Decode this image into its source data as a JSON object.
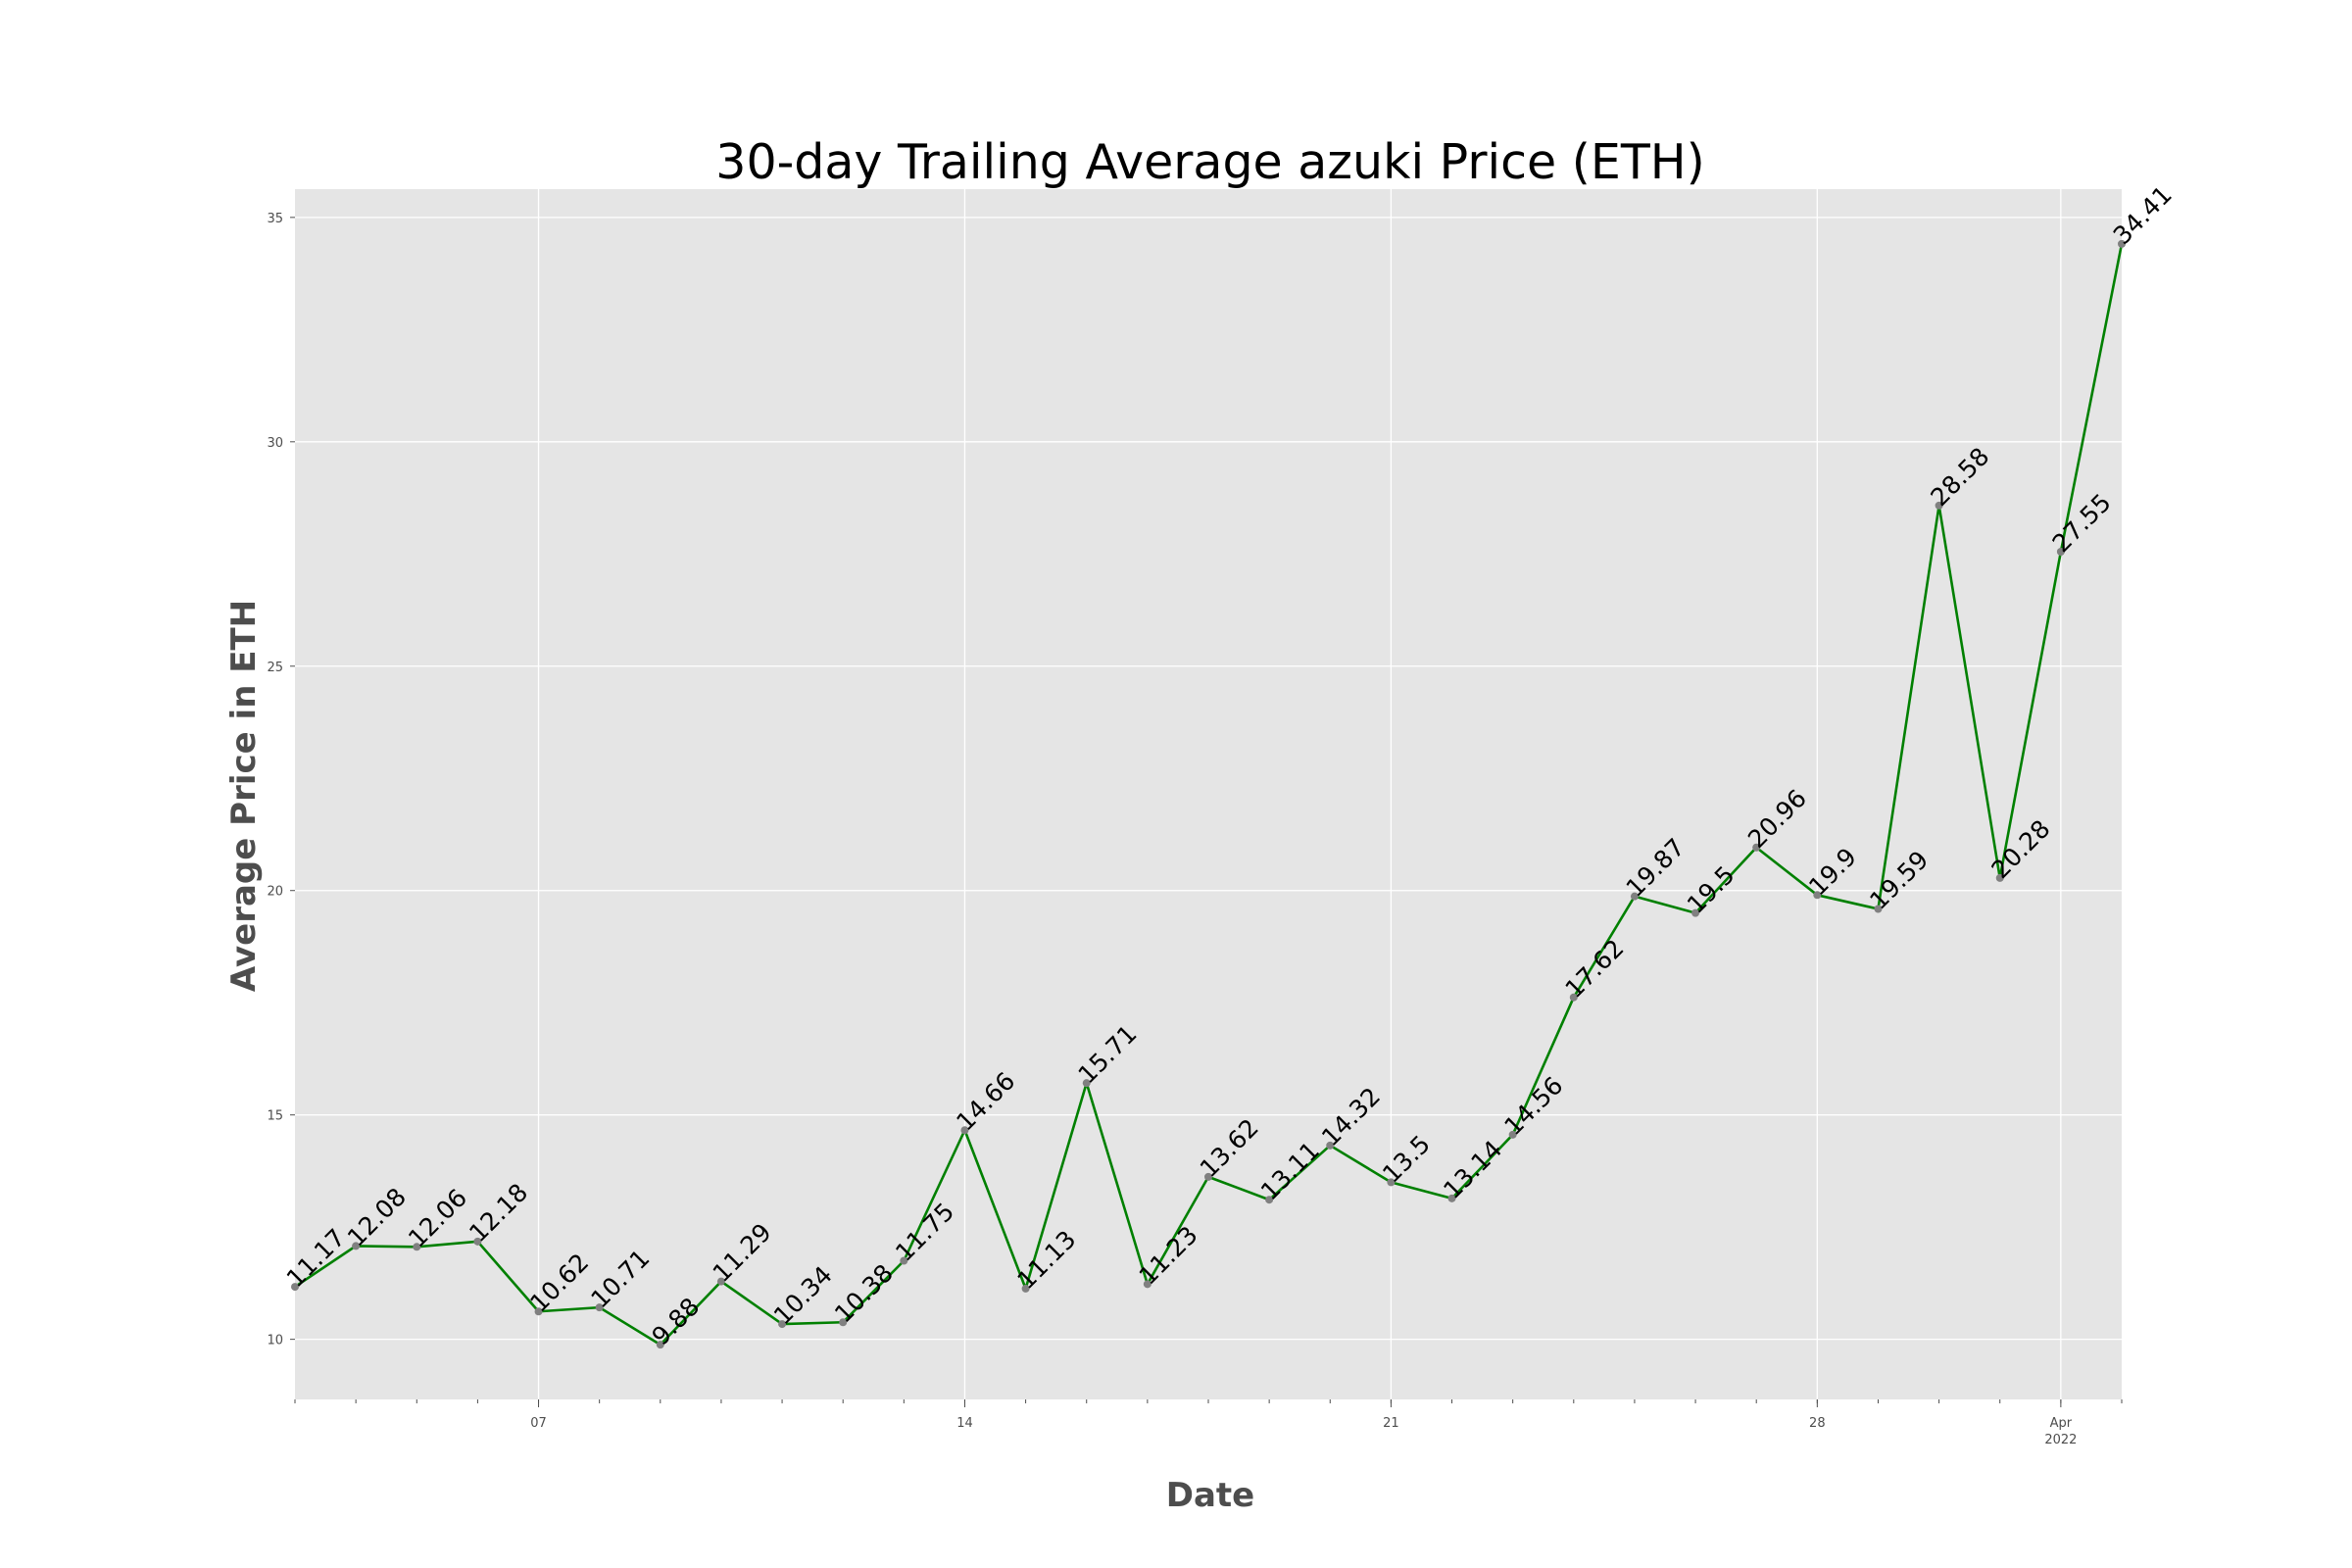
{
  "chart_data": {
    "type": "line",
    "title": "30-day Trailing Average azuki Price (ETH)",
    "xlabel": "Date",
    "ylabel": "Average Price in ETH",
    "x": [
      "2022-03-03",
      "2022-03-04",
      "2022-03-05",
      "2022-03-06",
      "2022-03-07",
      "2022-03-08",
      "2022-03-09",
      "2022-03-10",
      "2022-03-11",
      "2022-03-12",
      "2022-03-13",
      "2022-03-14",
      "2022-03-15",
      "2022-03-16",
      "2022-03-17",
      "2022-03-18",
      "2022-03-19",
      "2022-03-20",
      "2022-03-21",
      "2022-03-22",
      "2022-03-23",
      "2022-03-24",
      "2022-03-25",
      "2022-03-26",
      "2022-03-27",
      "2022-03-28",
      "2022-03-29",
      "2022-03-30",
      "2022-03-31",
      "2022-04-01",
      "2022-04-02"
    ],
    "series": [
      {
        "values": [
          11.17,
          12.08,
          12.06,
          12.18,
          10.62,
          10.71,
          9.88,
          11.29,
          10.34,
          10.38,
          11.75,
          14.66,
          11.13,
          15.71,
          11.23,
          13.62,
          13.11,
          14.32,
          13.5,
          13.14,
          14.56,
          17.62,
          19.87,
          19.5,
          20.96,
          19.9,
          19.59,
          28.58,
          20.28,
          27.55,
          34.41
        ],
        "labels": [
          "11.17",
          "12.08",
          "12.06",
          "12.18",
          "10.62",
          "10.71",
          "9.88",
          "11.29",
          "10.34",
          "10.38",
          "11.75",
          "14.66",
          "11.13",
          "15.71",
          "11.23",
          "13.62",
          "13.11",
          "14.32",
          "13.5",
          "13.14",
          "14.56",
          "17.62",
          "19.87",
          "19.5",
          "20.96",
          "19.9",
          "19.59",
          "28.58",
          "20.28",
          "27.55",
          "34.41"
        ]
      }
    ],
    "xticks": [
      {
        "date": "2022-03-07",
        "label": "07",
        "sublabel": ""
      },
      {
        "date": "2022-03-14",
        "label": "14",
        "sublabel": ""
      },
      {
        "date": "2022-03-21",
        "label": "21",
        "sublabel": ""
      },
      {
        "date": "2022-03-28",
        "label": "28",
        "sublabel": ""
      },
      {
        "date": "2022-04-01",
        "label": "Apr",
        "sublabel": "2022"
      }
    ],
    "yticks": [
      10,
      15,
      20,
      25,
      30,
      35
    ],
    "ylim": [
      8.66,
      35.63
    ],
    "xlim": [
      "2022-03-03",
      "2022-04-02"
    ],
    "grid": true,
    "colors": {
      "line": "#008000",
      "marker": "#808080",
      "plot_bg": "#e5e5e5",
      "grid": "#ffffff",
      "axis_text": "#4d4d4d"
    }
  }
}
